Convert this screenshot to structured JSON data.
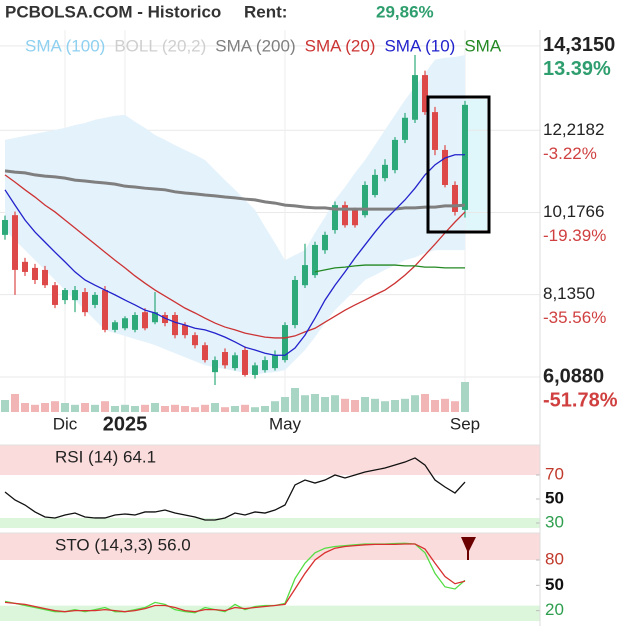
{
  "header": {
    "title": "PCBOLSA.COM - Historico",
    "rent_label": "Rent:",
    "rent_value": "29,86%",
    "rent_color": "#2e9e6e"
  },
  "chart_data": [
    {
      "type": "candlestick",
      "categories": [
        null,
        null,
        null,
        null,
        null,
        null,
        "Dic",
        null,
        null,
        null,
        null,
        null,
        "2025",
        null,
        null,
        null,
        null,
        null,
        null,
        null,
        null,
        null,
        null,
        null,
        null,
        null,
        null,
        null,
        "May",
        null,
        null,
        null,
        null,
        null,
        null,
        null,
        null,
        null,
        null,
        null,
        null,
        null,
        null,
        null,
        null,
        null,
        "Sep"
      ],
      "open": [
        9.62,
        10.11,
        8.95,
        8.8,
        8.75,
        8.37,
        8.0,
        8.0,
        8.2,
        7.88,
        8.25,
        7.26,
        7.3,
        7.26,
        7.7,
        7.45,
        7.63,
        7.63,
        7.38,
        7.13,
        6.88,
        6.21,
        6.71,
        6.31,
        6.76,
        6.14,
        6.26,
        6.31,
        6.51,
        7.38,
        8.37,
        8.62,
        9.24,
        9.74,
        10.36,
        10.24,
        10.11,
        10.61,
        11.03,
        11.23,
        11.98,
        12.48,
        13.59,
        12.67,
        11.73,
        10.86,
        10.24
      ],
      "high": [
        10.1,
        10.2,
        9.05,
        8.9,
        8.85,
        8.45,
        8.3,
        8.35,
        8.3,
        8.2,
        8.35,
        7.5,
        7.6,
        7.7,
        7.8,
        8.2,
        7.7,
        7.7,
        7.45,
        7.2,
        6.95,
        6.6,
        6.8,
        6.7,
        6.85,
        6.45,
        6.6,
        6.75,
        7.45,
        8.6,
        9.4,
        9.45,
        9.7,
        10.45,
        10.45,
        10.3,
        10.95,
        11.25,
        11.5,
        12.05,
        12.65,
        14.09,
        13.7,
        12.8,
        11.85,
        10.95,
        12.95
      ],
      "low": [
        9.5,
        8.13,
        8.6,
        8.4,
        8.3,
        7.8,
        7.9,
        7.7,
        7.6,
        7.8,
        7.2,
        7.2,
        7.25,
        7.2,
        7.25,
        7.4,
        7.35,
        7.05,
        7.05,
        6.8,
        6.45,
        5.89,
        6.3,
        6.25,
        6.1,
        6.05,
        6.2,
        6.25,
        6.45,
        7.3,
        8.3,
        8.55,
        9.15,
        9.65,
        9.8,
        9.8,
        10.05,
        10.55,
        10.95,
        11.15,
        11.9,
        12.4,
        12.6,
        11.6,
        10.8,
        10.1,
        10.05
      ],
      "close": [
        9.99,
        8.75,
        8.7,
        8.5,
        8.37,
        7.88,
        8.25,
        8.25,
        7.7,
        8.13,
        7.26,
        7.45,
        7.55,
        7.63,
        7.3,
        7.7,
        7.43,
        7.13,
        7.13,
        6.88,
        6.51,
        6.51,
        6.38,
        6.63,
        6.14,
        6.38,
        6.51,
        6.63,
        7.38,
        8.5,
        8.87,
        9.37,
        9.62,
        10.36,
        9.86,
        9.86,
        10.86,
        11.11,
        11.36,
        11.98,
        12.53,
        13.59,
        12.67,
        11.73,
        10.86,
        10.19,
        12.85
      ],
      "up_color": "#2eaa7a",
      "down_color": "#dd4848",
      "series": [
        {
          "name": "SMA (100)",
          "color": "#8fd0f0"
        },
        {
          "name": "BOLL (20,2)",
          "color": "#cfcfcf",
          "fill": "#e4f2fb",
          "upper": [
            11.98,
            12.03,
            12.08,
            12.13,
            12.18,
            12.23,
            12.28,
            12.35,
            12.4,
            12.48,
            12.53,
            12.58,
            12.6,
            12.43,
            12.28,
            12.1,
            11.98,
            11.85,
            11.73,
            11.61,
            11.48,
            11.23,
            10.98,
            10.74,
            10.49,
            10.24,
            9.82,
            9.42,
            8.99,
            9.12,
            9.24,
            9.67,
            10.06,
            10.49,
            10.81,
            11.16,
            11.48,
            11.85,
            12.23,
            12.6,
            12.97,
            13.3,
            13.64,
            13.97,
            14.02,
            14.04,
            14.09
          ],
          "lower": [
            9.74,
            9.49,
            9.24,
            8.99,
            8.75,
            8.5,
            8.25,
            8.0,
            7.75,
            7.5,
            7.26,
            7.18,
            7.11,
            7.03,
            6.96,
            6.88,
            6.78,
            6.68,
            6.58,
            6.48,
            6.38,
            6.33,
            6.29,
            6.24,
            6.19,
            6.14,
            6.19,
            6.21,
            6.26,
            6.51,
            6.76,
            7.08,
            7.43,
            7.75,
            8.0,
            8.25,
            8.5,
            8.62,
            8.75,
            8.87,
            8.99,
            9.06,
            9.17,
            9.24,
            9.24,
            9.24,
            9.24
          ]
        },
        {
          "name": "SMA (200)",
          "color": "#7f7f7f",
          "width": 3,
          "values": [
            11.21,
            11.18,
            11.16,
            11.11,
            11.08,
            11.06,
            11.03,
            10.98,
            10.96,
            10.93,
            10.91,
            10.88,
            10.83,
            10.81,
            10.78,
            10.76,
            10.74,
            10.69,
            10.66,
            10.64,
            10.61,
            10.59,
            10.56,
            10.54,
            10.51,
            10.49,
            10.44,
            10.41,
            10.36,
            10.34,
            10.31,
            10.29,
            10.29,
            10.26,
            10.26,
            10.26,
            10.26,
            10.26,
            10.26,
            10.26,
            10.29,
            10.29,
            10.31,
            10.31,
            10.34,
            10.34,
            10.36
          ]
        },
        {
          "name": "SMA (20)",
          "color": "#cc3333",
          "width": 1.3,
          "values": [
            11.11,
            10.93,
            10.74,
            10.56,
            10.36,
            10.19,
            9.99,
            9.79,
            9.59,
            9.39,
            9.19,
            8.99,
            8.8,
            8.6,
            8.42,
            8.25,
            8.1,
            7.95,
            7.8,
            7.68,
            7.55,
            7.43,
            7.33,
            7.26,
            7.18,
            7.13,
            7.08,
            7.06,
            7.06,
            7.11,
            7.21,
            7.3,
            7.45,
            7.6,
            7.75,
            7.88,
            8.0,
            8.13,
            8.25,
            8.42,
            8.62,
            8.85,
            9.12,
            9.39,
            9.67,
            9.94,
            10.19
          ]
        },
        {
          "name": "SMA (10)",
          "color": "#2222cc",
          "width": 1.3,
          "values": [
            10.74,
            10.36,
            9.99,
            9.69,
            9.44,
            9.19,
            8.95,
            8.7,
            8.5,
            8.37,
            8.25,
            8.13,
            8.0,
            7.88,
            7.75,
            7.68,
            7.55,
            7.45,
            7.38,
            7.3,
            7.26,
            7.18,
            7.08,
            6.96,
            6.83,
            6.76,
            6.68,
            6.63,
            6.63,
            6.81,
            7.13,
            7.55,
            8.0,
            8.37,
            8.7,
            9.05,
            9.37,
            9.69,
            9.99,
            10.24,
            10.49,
            10.78,
            11.11,
            11.36,
            11.53,
            11.61,
            11.61
          ]
        },
        {
          "name": "SMA",
          "color": "#228822",
          "width": 1.3,
          "values": [
            null,
            null,
            null,
            null,
            null,
            null,
            null,
            null,
            null,
            null,
            null,
            null,
            null,
            null,
            null,
            null,
            null,
            null,
            null,
            null,
            null,
            null,
            null,
            null,
            null,
            null,
            null,
            null,
            null,
            null,
            null,
            8.7,
            8.75,
            8.8,
            8.82,
            8.85,
            8.87,
            8.87,
            8.87,
            8.87,
            8.85,
            8.85,
            8.82,
            8.82,
            8.8,
            8.8,
            8.8
          ]
        }
      ],
      "volume": {
        "values": [
          20,
          30,
          15,
          12,
          15,
          18,
          15,
          12,
          15,
          12,
          18,
          10,
          12,
          10,
          12,
          15,
          10,
          12,
          10,
          8,
          12,
          15,
          8,
          10,
          12,
          8,
          10,
          18,
          25,
          40,
          28,
          30,
          25,
          28,
          22,
          20,
          25,
          22,
          18,
          20,
          22,
          28,
          30,
          20,
          22,
          18,
          50
        ],
        "ylim": [
          0,
          100
        ],
        "up_color": "#a9d6c4",
        "down_color": "#f2b5b5"
      },
      "ylim": [
        5.22,
        14.71
      ],
      "yticks": [
        {
          "value": 14.315,
          "label": "14,3150"
        },
        {
          "value": 12.2182,
          "label": "12,2182"
        },
        {
          "value": 10.1766,
          "label": "10,1766"
        },
        {
          "value": 8.135,
          "label": "8,1350"
        },
        {
          "value": 6.088,
          "label": "6,0880"
        }
      ],
      "ytick_changes": [
        {
          "value": 13.39,
          "label": "13.39%"
        },
        {
          "value": -3.22,
          "label": "-3.22%"
        },
        {
          "value": -19.39,
          "label": "-19.39%"
        },
        {
          "value": -35.56,
          "label": "-35.56%"
        },
        {
          "value": -51.78,
          "label": "-51.78%"
        }
      ],
      "grid": true
    },
    {
      "type": "line",
      "title": "RSI (14) 64.1",
      "series": [
        {
          "color": "#111111",
          "values": [
            55.8,
            49.2,
            45.0,
            39.2,
            35.0,
            34.2,
            36.7,
            38.3,
            35.0,
            34.2,
            34.2,
            36.7,
            37.5,
            36.7,
            39.2,
            39.2,
            40.8,
            38.3,
            36.7,
            35.0,
            32.5,
            32.5,
            34.2,
            38.3,
            36.7,
            39.2,
            38.3,
            40.8,
            45.0,
            61.7,
            65.8,
            63.3,
            65.8,
            70.0,
            67.5,
            70.0,
            72.5,
            74.2,
            75.8,
            78.3,
            80.8,
            84.2,
            78.3,
            65.8,
            60.0,
            55.0,
            64.1
          ]
        }
      ],
      "ylim": [
        22.5,
        95
      ],
      "yticks": [
        70,
        50,
        30
      ],
      "ytick_colors": [
        "#c0392b",
        "#111111",
        "#2e9e4e"
      ],
      "upper_band_color": "#fbdcdc",
      "lower_band_color": "#dcf6dc"
    },
    {
      "type": "line",
      "title": "STO (14,3,3) 56.0",
      "series": [
        {
          "color": "#55dd44",
          "values": [
            31.0,
            28.6,
            26.1,
            23.7,
            21.2,
            18.8,
            18.8,
            21.2,
            18.8,
            21.2,
            23.7,
            18.8,
            18.8,
            21.2,
            23.7,
            29.8,
            27.4,
            21.2,
            18.8,
            17.6,
            23.7,
            21.2,
            18.8,
            27.4,
            21.2,
            24.9,
            26.1,
            26.1,
            28.6,
            58.0,
            76.3,
            88.6,
            94.0,
            96.0,
            97.0,
            98.0,
            99.0,
            99.0,
            99.0,
            99.5,
            99.8,
            99.0,
            88.6,
            64.1,
            48.2,
            45.7,
            56.0
          ]
        },
        {
          "color": "#d83030",
          "values": [
            29.8,
            28.6,
            27.4,
            24.9,
            22.4,
            20.0,
            18.8,
            20.0,
            20.0,
            20.0,
            21.2,
            20.0,
            18.8,
            20.0,
            22.4,
            26.1,
            26.1,
            23.7,
            20.0,
            18.8,
            21.2,
            21.2,
            20.0,
            23.7,
            22.4,
            23.7,
            24.9,
            26.1,
            27.4,
            45.7,
            64.1,
            80.0,
            88.6,
            94.0,
            96.0,
            97.0,
            98.0,
            98.5,
            98.5,
            98.5,
            99.0,
            99.0,
            93.0,
            76.3,
            60.4,
            51.9,
            55.0
          ]
        }
      ],
      "ylim": [
        3,
        112
      ],
      "yticks": [
        80,
        50,
        20
      ],
      "ytick_colors": [
        "#c0392b",
        "#111111",
        "#2e9e4e"
      ],
      "upper_band_color": "#fbdcdc",
      "lower_band_color": "#dcf6dc"
    }
  ]
}
